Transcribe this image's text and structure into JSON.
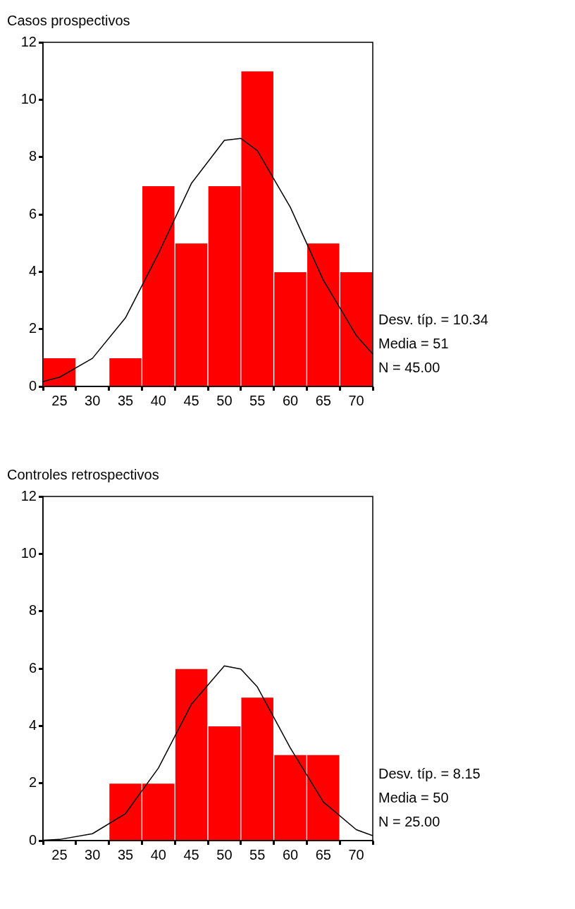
{
  "chart_data": [
    {
      "type": "histogram",
      "title": "Casos prospectivos",
      "bins": [
        22.5,
        27.5,
        32.5,
        37.5,
        42.5,
        47.5,
        52.5,
        57.5,
        62.5,
        67.5,
        72.5
      ],
      "values": [
        1,
        0,
        1,
        7,
        5,
        7,
        11,
        4,
        5,
        4
      ],
      "color": "#ff0000",
      "series": [
        {
          "type": "line",
          "marker": "none",
          "color": "#000000",
          "x": [
            22.5,
            25,
            30,
            35,
            40,
            45,
            50,
            52.5,
            55,
            60,
            65,
            70,
            72.5
          ],
          "values": [
            0.17,
            0.32,
            0.98,
            2.39,
            4.63,
            7.08,
            8.58,
            8.65,
            8.22,
            6.25,
            3.71,
            1.78,
            1.13
          ]
        }
      ],
      "xlim": [
        22.5,
        72.5
      ],
      "xticks": [
        25,
        30,
        35,
        40,
        45,
        50,
        55,
        60,
        65,
        70
      ],
      "ylim": [
        0,
        12
      ],
      "yticks": [
        0,
        2,
        4,
        6,
        8,
        10,
        12
      ],
      "grid": false,
      "legend": false,
      "annotations": [
        "Desv. típ. = 10.34",
        "Media = 51",
        "N = 45.00"
      ]
    },
    {
      "type": "histogram",
      "title": "Controles retrospectivos",
      "bins": [
        22.5,
        27.5,
        32.5,
        37.5,
        42.5,
        47.5,
        52.5,
        57.5,
        62.5,
        67.5,
        72.5
      ],
      "values": [
        0,
        0,
        2,
        2,
        6,
        4,
        5,
        3,
        3,
        0
      ],
      "color": "#ff0000",
      "series": [
        {
          "type": "line",
          "marker": "none",
          "color": "#000000",
          "x": [
            22.5,
            25,
            30,
            35,
            40,
            45,
            50,
            52.5,
            55,
            60,
            65,
            70,
            72.5
          ],
          "values": [
            0.01,
            0.04,
            0.24,
            0.94,
            2.53,
            4.75,
            6.09,
            5.98,
            5.36,
            3.23,
            1.35,
            0.38,
            0.17
          ]
        }
      ],
      "xlim": [
        22.5,
        72.5
      ],
      "xticks": [
        25,
        30,
        35,
        40,
        45,
        50,
        55,
        60,
        65,
        70
      ],
      "ylim": [
        0,
        12
      ],
      "yticks": [
        0,
        2,
        4,
        6,
        8,
        10,
        12
      ],
      "grid": false,
      "legend": false,
      "annotations": [
        "Desv. típ. = 8.15",
        "Media = 50",
        "N = 25.00"
      ]
    }
  ]
}
